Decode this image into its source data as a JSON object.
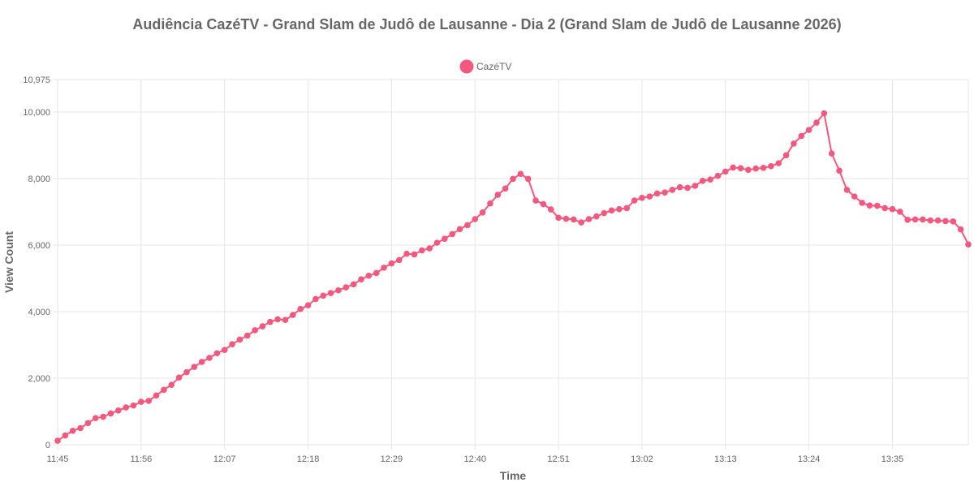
{
  "chart_data": {
    "type": "line",
    "title": "Audiência CazéTV - Grand Slam de Judô de Lausanne - Dia 2 (Grand Slam de Judô de Lausanne 2026)",
    "xlabel": "Time",
    "ylabel": "View Count",
    "legend_position": "top-center",
    "grid": true,
    "ylim": [
      0,
      10975
    ],
    "y_ticks": [
      0,
      2000,
      4000,
      6000,
      8000,
      10000,
      10975
    ],
    "y_tick_labels": [
      "0",
      "2,000",
      "4,000",
      "6,000",
      "8,000",
      "10,000",
      "10,975"
    ],
    "x_ticks": [
      "11:45",
      "11:56",
      "12:07",
      "12:18",
      "12:29",
      "12:40",
      "12:51",
      "13:02",
      "13:13",
      "13:24",
      "13:35"
    ],
    "x_start": "11:45",
    "x_end": "13:45",
    "series": [
      {
        "name": "CazéTV",
        "color": "#f4587f",
        "x": [
          "11:45",
          "11:46",
          "11:47",
          "11:48",
          "11:49",
          "11:50",
          "11:51",
          "11:52",
          "11:53",
          "11:54",
          "11:55",
          "11:56",
          "11:57",
          "11:58",
          "11:59",
          "12:00",
          "12:01",
          "12:02",
          "12:03",
          "12:04",
          "12:05",
          "12:06",
          "12:07",
          "12:08",
          "12:09",
          "12:10",
          "12:11",
          "12:12",
          "12:13",
          "12:14",
          "12:15",
          "12:16",
          "12:17",
          "12:18",
          "12:19",
          "12:20",
          "12:21",
          "12:22",
          "12:23",
          "12:24",
          "12:25",
          "12:26",
          "12:27",
          "12:28",
          "12:29",
          "12:30",
          "12:31",
          "12:32",
          "12:33",
          "12:34",
          "12:35",
          "12:36",
          "12:37",
          "12:38",
          "12:39",
          "12:40",
          "12:41",
          "12:42",
          "12:43",
          "12:44",
          "12:45",
          "12:46",
          "12:47",
          "12:48",
          "12:49",
          "12:50",
          "12:51",
          "12:52",
          "12:53",
          "12:54",
          "12:55",
          "12:56",
          "12:57",
          "12:58",
          "12:59",
          "13:00",
          "13:01",
          "13:02",
          "13:03",
          "13:04",
          "13:05",
          "13:06",
          "13:07",
          "13:08",
          "13:09",
          "13:10",
          "13:11",
          "13:12",
          "13:13",
          "13:14",
          "13:15",
          "13:16",
          "13:17",
          "13:18",
          "13:19",
          "13:20",
          "13:21",
          "13:22",
          "13:23",
          "13:24",
          "13:25",
          "13:26",
          "13:27",
          "13:28",
          "13:29",
          "13:30",
          "13:31",
          "13:32",
          "13:33",
          "13:34",
          "13:35",
          "13:36",
          "13:37",
          "13:38",
          "13:39",
          "13:40",
          "13:41",
          "13:42",
          "13:43",
          "13:44",
          "13:45"
        ],
        "values": [
          120,
          280,
          420,
          500,
          650,
          800,
          840,
          940,
          1030,
          1120,
          1180,
          1290,
          1320,
          1480,
          1650,
          1800,
          2020,
          2180,
          2340,
          2490,
          2610,
          2750,
          2850,
          3020,
          3160,
          3280,
          3440,
          3560,
          3690,
          3770,
          3750,
          3900,
          4080,
          4190,
          4380,
          4480,
          4560,
          4640,
          4730,
          4820,
          4970,
          5080,
          5160,
          5320,
          5450,
          5550,
          5740,
          5720,
          5840,
          5900,
          6070,
          6190,
          6330,
          6480,
          6600,
          6780,
          6980,
          7250,
          7510,
          7700,
          7990,
          8140,
          7990,
          7340,
          7230,
          7070,
          6820,
          6790,
          6770,
          6680,
          6780,
          6860,
          6960,
          7040,
          7080,
          7110,
          7340,
          7420,
          7460,
          7550,
          7580,
          7660,
          7740,
          7720,
          7780,
          7930,
          7970,
          8080,
          8210,
          8330,
          8310,
          8260,
          8300,
          8320,
          8370,
          8460,
          8700,
          9050,
          9280,
          9460,
          9680,
          9960,
          8750,
          8240,
          7660,
          7460,
          7270,
          7190,
          7180,
          7110,
          7080,
          7000,
          6760,
          6770,
          6770,
          6740,
          6740,
          6720,
          6710,
          6470,
          6020
        ]
      }
    ]
  }
}
